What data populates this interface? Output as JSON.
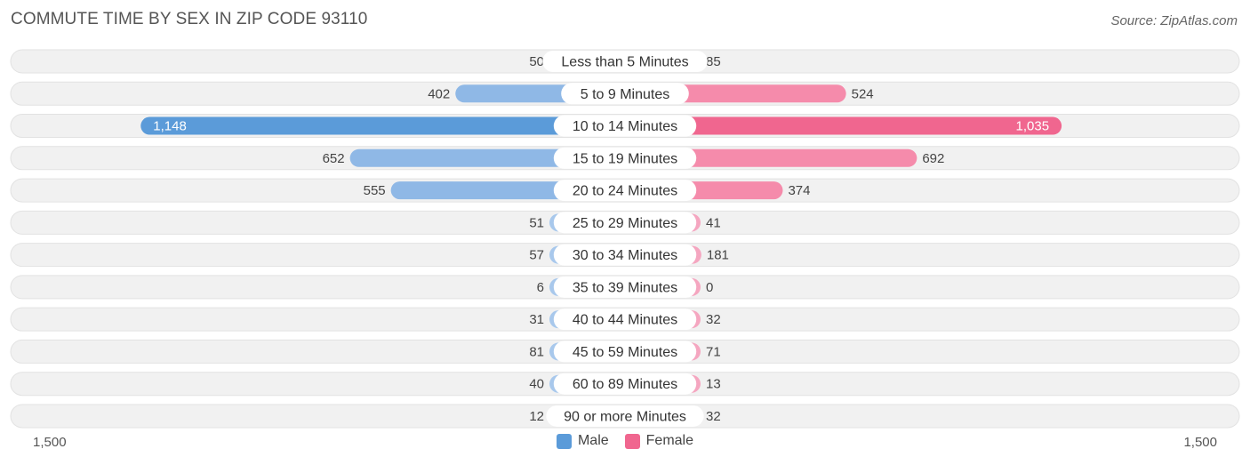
{
  "title": "COMMUTE TIME BY SEX IN ZIP CODE 93110",
  "source": "Source: ZipAtlas.com",
  "colors": {
    "male_dark": "#5b9bd9",
    "male_light": "#a8c8ec",
    "female_dark": "#f0668f",
    "female_light": "#f5a6c0",
    "row_bg": "#f1f1f1"
  },
  "chart_data": {
    "type": "bar",
    "orientation": "horizontal-diverging",
    "categories": [
      "Less than 5 Minutes",
      "5 to 9 Minutes",
      "10 to 14 Minutes",
      "15 to 19 Minutes",
      "20 to 24 Minutes",
      "25 to 29 Minutes",
      "30 to 34 Minutes",
      "35 to 39 Minutes",
      "40 to 44 Minutes",
      "45 to 59 Minutes",
      "60 to 89 Minutes",
      "90 or more Minutes"
    ],
    "series": [
      {
        "name": "Male",
        "values": [
          50,
          402,
          1148,
          652,
          555,
          51,
          57,
          6,
          31,
          81,
          40,
          12
        ]
      },
      {
        "name": "Female",
        "values": [
          85,
          524,
          1035,
          692,
          374,
          41,
          181,
          0,
          32,
          71,
          13,
          32
        ]
      }
    ],
    "value_labels": {
      "male": [
        "50",
        "402",
        "1,148",
        "652",
        "555",
        "51",
        "57",
        "6",
        "31",
        "81",
        "40",
        "12"
      ],
      "female": [
        "85",
        "524",
        "1,035",
        "692",
        "374",
        "41",
        "181",
        "0",
        "32",
        "71",
        "13",
        "32"
      ]
    },
    "xlim": [
      0,
      1500
    ],
    "axis_labels": {
      "left": "1,500",
      "right": "1,500"
    },
    "legend": {
      "male": "Male",
      "female": "Female",
      "position": "bottom-center"
    }
  }
}
